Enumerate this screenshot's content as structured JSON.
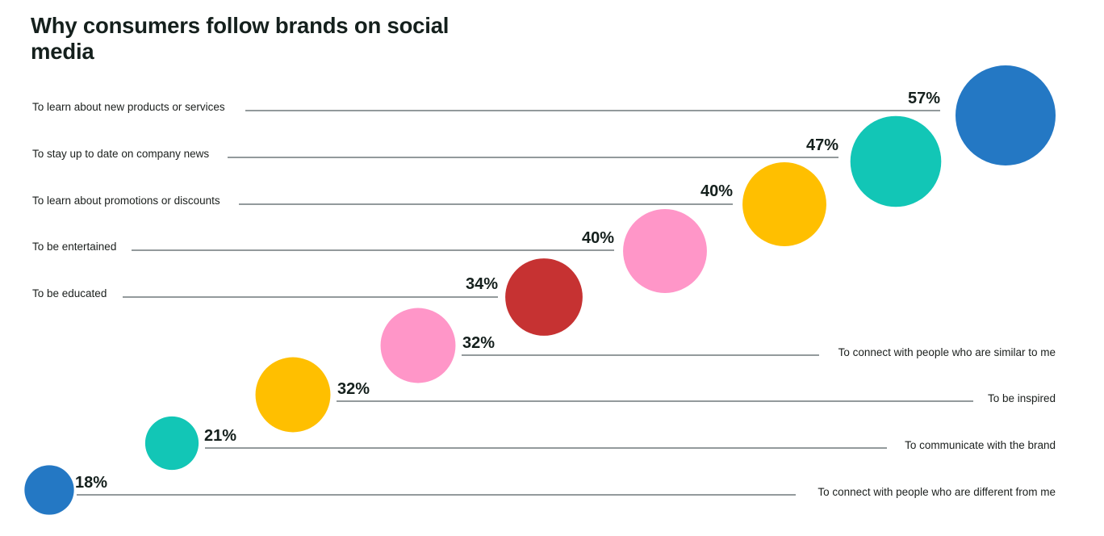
{
  "title": "Why consumers follow brands on social media",
  "chart_data": {
    "type": "bubble",
    "title": "Why consumers follow brands on social media",
    "unit": "%",
    "items": [
      {
        "label": "To learn about new products or services",
        "value": 57,
        "display": "57%",
        "color": "#2478c4"
      },
      {
        "label": "To stay up to date on company news",
        "value": 47,
        "display": "47%",
        "color": "#12c6b6"
      },
      {
        "label": "To learn about promotions or discounts",
        "value": 40,
        "display": "40%",
        "color": "#ffbf00"
      },
      {
        "label": "To be entertained",
        "value": 40,
        "display": "40%",
        "color": "#ff96c8"
      },
      {
        "label": "To be educated",
        "value": 34,
        "display": "34%",
        "color": "#c63232"
      },
      {
        "label": "To connect with people who are similar to me",
        "value": 32,
        "display": "32%",
        "color": "#ff96c8"
      },
      {
        "label": "To be inspired",
        "value": 32,
        "display": "32%",
        "color": "#ffbf00"
      },
      {
        "label": "To communicate with the brand",
        "value": 21,
        "display": "21%",
        "color": "#12c6b6"
      },
      {
        "label": "To connect with people who are different from me",
        "value": 18,
        "display": "18%",
        "color": "#2478c4"
      }
    ]
  }
}
